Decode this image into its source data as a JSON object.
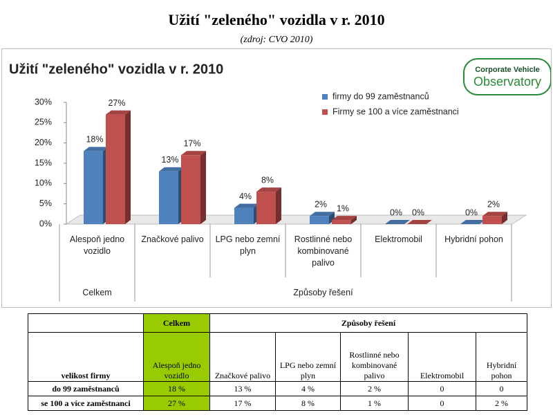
{
  "title": "Užití \"zeleného\" vozidla v r. 2010",
  "source": "(zdroj: CVO 2010)",
  "logo": {
    "line1": "Corporate Vehicle",
    "line2": "Observatory"
  },
  "chart_data": {
    "type": "bar",
    "title": "Užití \"zeleného\" vozidla v r. 2010",
    "categories": [
      "Alespoň jedno vozidlo",
      "Značkové palivo",
      "LPG nebo zemní plyn",
      "Rostlinné nebo kombinované palivo",
      "Elektromobil",
      "Hybridní pohon"
    ],
    "groups": [
      {
        "label": "Celkem",
        "count": 1
      },
      {
        "label": "Způsoby řešení",
        "count": 5
      }
    ],
    "series": [
      {
        "name": "firmy do 99 zaměstnanců",
        "color": "#4f81bd",
        "values": [
          18,
          13,
          4,
          2,
          0,
          0
        ],
        "value_labels": [
          "18%",
          "13%",
          "4%",
          "2%",
          "0%",
          "0%"
        ]
      },
      {
        "name": "Firmy se 100 a více zaměstnanci",
        "color": "#c0504d",
        "values": [
          27,
          17,
          8,
          1,
          0,
          2
        ],
        "value_labels": [
          "27%",
          "17%",
          "8%",
          "1%",
          "0%",
          "2%"
        ]
      }
    ],
    "ylim": [
      0,
      30
    ],
    "yticks": [
      {
        "value": 0,
        "label": "0%"
      },
      {
        "value": 5,
        "label": "5%"
      },
      {
        "value": 10,
        "label": "10%"
      },
      {
        "value": 15,
        "label": "15%"
      },
      {
        "value": 20,
        "label": "20%"
      },
      {
        "value": 25,
        "label": "25%"
      },
      {
        "value": 30,
        "label": "30%"
      }
    ],
    "grid": false,
    "legend": "top-right"
  },
  "table": {
    "header1": [
      "",
      "Celkem",
      "Způsoby řešení"
    ],
    "header2": [
      "velikost firmy",
      "Alespoň jedno vozidlo",
      "Značkové palivo",
      "LPG nebo zemní plyn",
      "Rostlinné nebo kombinované palivo",
      "Elektromobil",
      "Hybridní pohon"
    ],
    "rows": [
      [
        "do 99 zaměstnanců",
        "18 %",
        "13 %",
        "4 %",
        "2 %",
        "0",
        "0"
      ],
      [
        "se 100 a více zaměstnanci",
        "27 %",
        "17 %",
        "8 %",
        "1 %",
        "0",
        "2 %"
      ]
    ]
  }
}
